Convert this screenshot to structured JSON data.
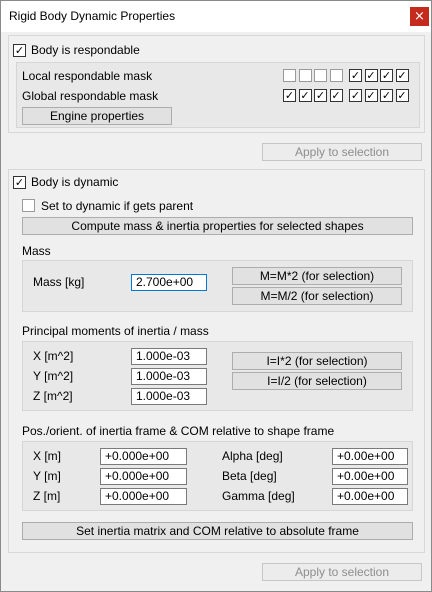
{
  "window": {
    "title": "Rigid Body Dynamic Properties",
    "close_label": "×"
  },
  "respondable": {
    "checkbox_label": "Body is respondable",
    "checked": true,
    "local_label": "Local respondable mask",
    "local_mask": [
      false,
      false,
      false,
      false,
      true,
      true,
      true,
      true
    ],
    "global_label": "Global respondable mask",
    "global_mask": [
      true,
      true,
      true,
      true,
      true,
      true,
      true,
      true
    ],
    "engine_button": "Engine properties",
    "apply_button": "Apply to selection"
  },
  "dynamic": {
    "checkbox_label": "Body is dynamic",
    "checked": true,
    "parent_label": "Set to dynamic if gets parent",
    "parent_checked": false,
    "compute_button": "Compute mass & inertia properties for selected shapes",
    "mass": {
      "group_label": "Mass",
      "label": "Mass [kg]",
      "value": "2.700e+00",
      "mul_button": "M=M*2  (for selection)",
      "div_button": "M=M/2  (for selection)"
    },
    "inertia": {
      "group_label": "Principal moments of inertia / mass",
      "x_label": "X [m^2]",
      "x_value": "1.000e-03",
      "y_label": "Y [m^2]",
      "y_value": "1.000e-03",
      "z_label": "Z [m^2]",
      "z_value": "1.000e-03",
      "mul_button": "I=I*2  (for selection)",
      "div_button": "I=I/2  (for selection)"
    },
    "frame": {
      "group_label": "Pos./orient. of inertia frame & COM relative to shape frame",
      "x_label": "X [m]",
      "x_value": "+0.000e+00",
      "y_label": "Y [m]",
      "y_value": "+0.000e+00",
      "z_label": "Z [m]",
      "z_value": "+0.000e+00",
      "alpha_label": "Alpha [deg]",
      "alpha_value": "+0.00e+00",
      "beta_label": "Beta [deg]",
      "beta_value": "+0.00e+00",
      "gamma_label": "Gamma [deg]",
      "gamma_value": "+0.00e+00"
    },
    "set_button": "Set inertia matrix and COM relative to absolute frame",
    "apply_button": "Apply to selection"
  },
  "check_glyph": "✓"
}
